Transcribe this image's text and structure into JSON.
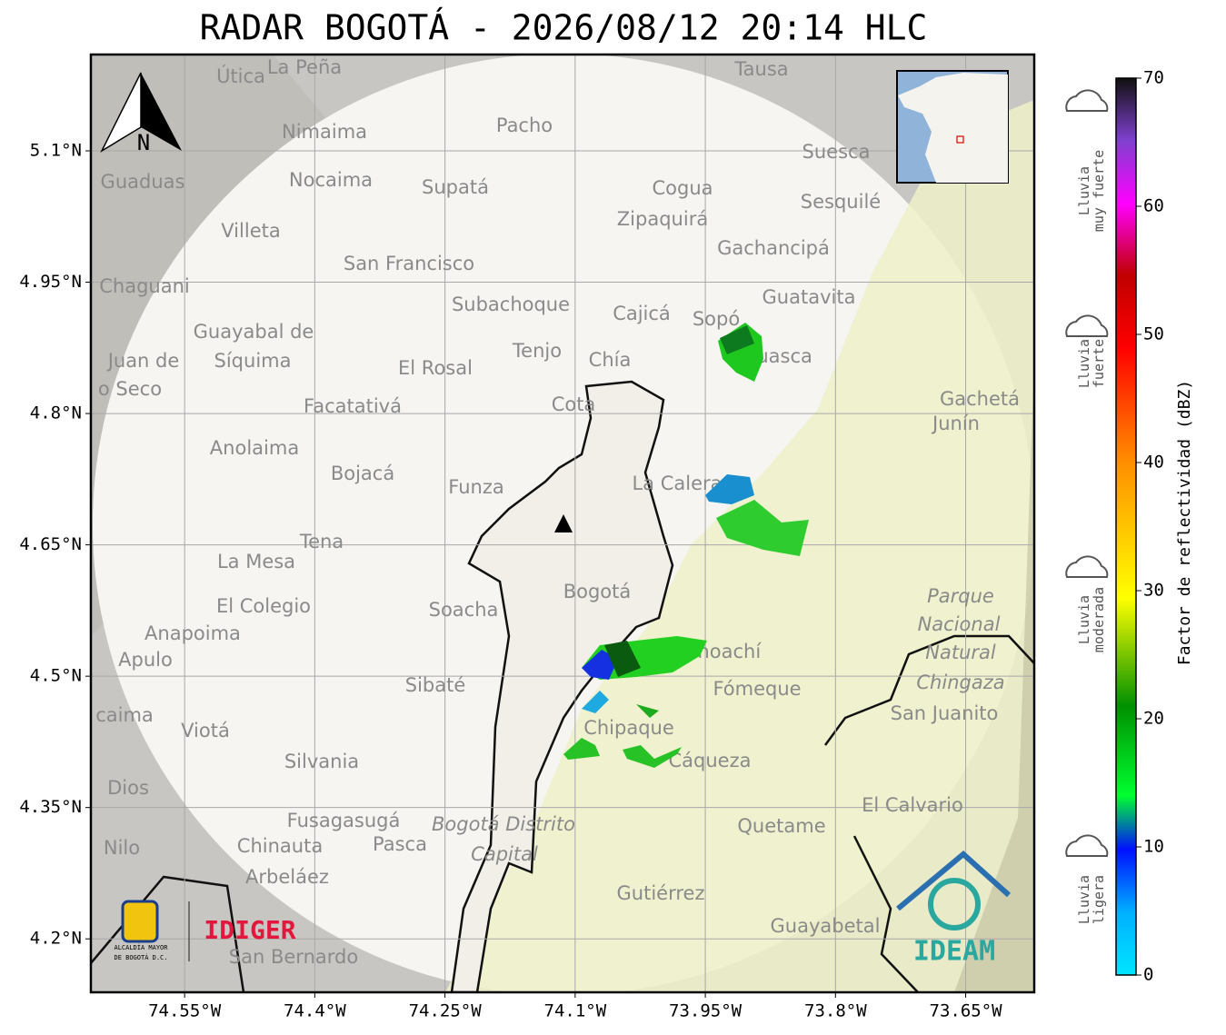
{
  "title": "RADAR BOGOTÁ - 2026/08/12 20:14 HLC",
  "map": {
    "lonlim": [
      -74.658,
      -73.571
    ],
    "latlim": [
      4.139,
      5.21
    ],
    "lon_ticks": [
      {
        "value": -74.55,
        "label": "74.55°W"
      },
      {
        "value": -74.4,
        "label": "74.4°W"
      },
      {
        "value": -74.25,
        "label": "74.25°W"
      },
      {
        "value": -74.1,
        "label": "74.1°W"
      },
      {
        "value": -73.95,
        "label": "73.95°W"
      },
      {
        "value": -73.8,
        "label": "73.8°W"
      },
      {
        "value": -73.65,
        "label": "73.65°W"
      }
    ],
    "lat_ticks": [
      {
        "value": 5.1,
        "label": "5.1°N"
      },
      {
        "value": 4.95,
        "label": "4.95°N"
      },
      {
        "value": 4.8,
        "label": "4.8°N"
      },
      {
        "value": 4.65,
        "label": "4.65°N"
      },
      {
        "value": 4.5,
        "label": "4.5°N"
      },
      {
        "value": 4.35,
        "label": "4.35°N"
      },
      {
        "value": 4.2,
        "label": "4.2°N"
      }
    ],
    "north": "N",
    "places": [
      "Útica",
      "La Peña",
      "Tausa",
      "Pacho",
      "Nimaima",
      "Guaduas",
      "Nocaima",
      "Supatá",
      "Cogua",
      "Suesca",
      "Sesquilé",
      "Zipaquirá",
      "Villeta",
      "Gachancipá",
      "San Francisco",
      "Chaguani",
      "Guatavita",
      "Subachoque",
      "Cajicá",
      "Sopó",
      "Guayabal de",
      "Síquima",
      "Juan de",
      "o Seco",
      "Tenjo",
      "Chía",
      "El Rosal",
      "Guasca",
      "Facatativá",
      "Cota",
      "Gachetá",
      "Junín",
      "Anolaima",
      "Bojacá",
      "Funza",
      "La Calera",
      "Tena",
      "La Mesa",
      "Bogotá",
      "Soacha",
      "El Colegio",
      "Parque",
      "Nacional",
      "Natural",
      "Chingaza",
      "Anapoima",
      "Apulo",
      "Choachí",
      "Fómeque",
      "Sibaté",
      "San Juanito",
      "caima",
      "Viotá",
      "Chipaque",
      "Cáqueza",
      "Silvania",
      "Dios",
      "El Calvario",
      "Fusagasugá",
      "Quetame",
      "Bogotá Distrito",
      "Capital",
      "Nilo",
      "Chinauta",
      "Pasca",
      "Arbeláez",
      "Gutiérrez",
      "Guayabetal",
      "San Bernardo"
    ]
  },
  "logos": {
    "alcaldia": [
      "ALCALDÍA MAYOR",
      "DE BOGOTÁ D.C."
    ],
    "idiger": "IDIGER",
    "ideam": "IDEAM"
  },
  "colorbar": {
    "label": "Factor de reflectividad (dBZ)",
    "lim": [
      0,
      70
    ],
    "ticks": [
      0,
      10,
      20,
      30,
      40,
      50,
      60,
      70
    ]
  },
  "categories": [
    [
      "Lluvia",
      "muy fuerte"
    ],
    [
      "Lluvia",
      "fuerte"
    ],
    [
      "Lluvia",
      "moderada"
    ],
    [
      "Lluvia",
      "ligera"
    ]
  ]
}
